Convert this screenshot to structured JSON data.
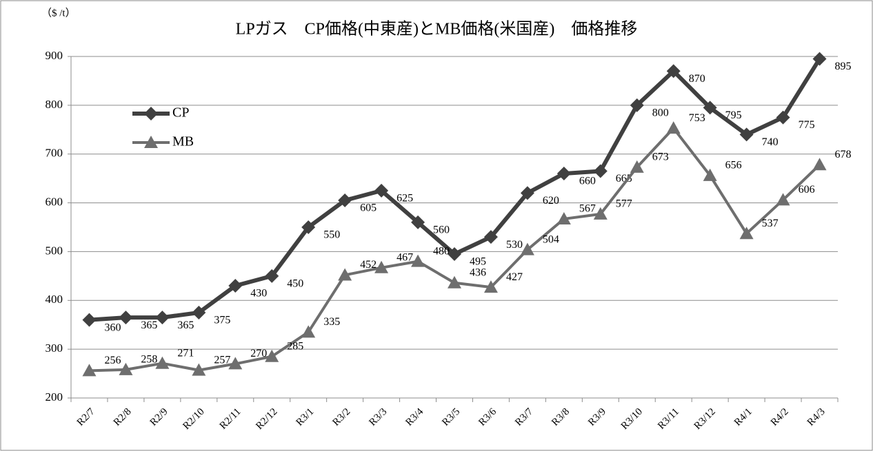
{
  "chart_data": {
    "type": "line",
    "title": "LPガス　CP価格(中東産)とMB価格(米国産)　価格推移",
    "y_axis_label": "（$ /t）",
    "categories": [
      "R2/7",
      "R2/8",
      "R2/9",
      "R2/10",
      "R2/11",
      "R2/12",
      "R3/1",
      "R3/2",
      "R3/3",
      "R3/4",
      "R3/5",
      "R3/6",
      "R3/7",
      "R3/8",
      "R3/9",
      "R3/10",
      "R3/11",
      "R3/12",
      "R4/1",
      "R4/2",
      "R4/3"
    ],
    "series": [
      {
        "name": "CP",
        "color": "#404040",
        "marker": "diamond",
        "values": [
          360,
          365,
          365,
          375,
          430,
          450,
          550,
          605,
          625,
          560,
          495,
          530,
          620,
          660,
          665,
          800,
          870,
          795,
          740,
          775,
          895
        ]
      },
      {
        "name": "MB",
        "color": "#6e6e6e",
        "marker": "triangle",
        "values": [
          256,
          258,
          271,
          257,
          270,
          285,
          335,
          452,
          467,
          480,
          436,
          427,
          504,
          567,
          577,
          673,
          753,
          656,
          537,
          606,
          678
        ]
      }
    ],
    "ylim": [
      200,
      900
    ],
    "yticks": [
      200,
      300,
      400,
      500,
      600,
      700,
      800,
      900
    ],
    "grid": true,
    "legend": "upper left"
  }
}
